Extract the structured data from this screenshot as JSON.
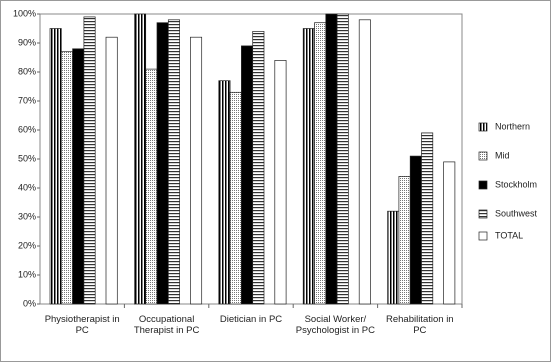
{
  "chart_data": {
    "type": "bar",
    "categories": [
      "Physiotherapist in PC",
      "Occupational Therapist in PC",
      "Dietician in PC",
      "Social Worker/ Psychologist in PC",
      "Rehabilitation in PC"
    ],
    "series": [
      {
        "name": "Northern",
        "color": "#000000",
        "pattern": "vertical-stripes",
        "values": [
          95,
          100,
          77,
          95,
          32
        ]
      },
      {
        "name": "Mid",
        "color": "#888888",
        "pattern": "dots",
        "values": [
          87,
          81,
          73,
          97,
          44
        ]
      },
      {
        "name": "Stockholm",
        "color": "#000000",
        "pattern": "solid",
        "values": [
          88,
          97,
          89,
          100,
          51
        ]
      },
      {
        "name": "Southwest",
        "color": "#555555",
        "pattern": "horizontal-stripes",
        "values": [
          99,
          98,
          94,
          100,
          59
        ]
      },
      {
        "name": "TOTAL",
        "color": "#ffffff",
        "pattern": "solid",
        "values": [
          92,
          92,
          84,
          98,
          49
        ]
      }
    ],
    "ylim": [
      0,
      100
    ],
    "yticks": [
      {
        "value": 0,
        "label": "0%"
      },
      {
        "value": 10,
        "label": "10%"
      },
      {
        "value": 20,
        "label": "20%"
      },
      {
        "value": 30,
        "label": "30%"
      },
      {
        "value": 40,
        "label": "40%"
      },
      {
        "value": 50,
        "label": "50%"
      },
      {
        "value": 60,
        "label": "60%"
      },
      {
        "value": 70,
        "label": "70%"
      },
      {
        "value": 80,
        "label": "80%"
      },
      {
        "value": 90,
        "label": "90%"
      },
      {
        "value": 100,
        "label": "100%"
      }
    ],
    "legend": "right"
  }
}
